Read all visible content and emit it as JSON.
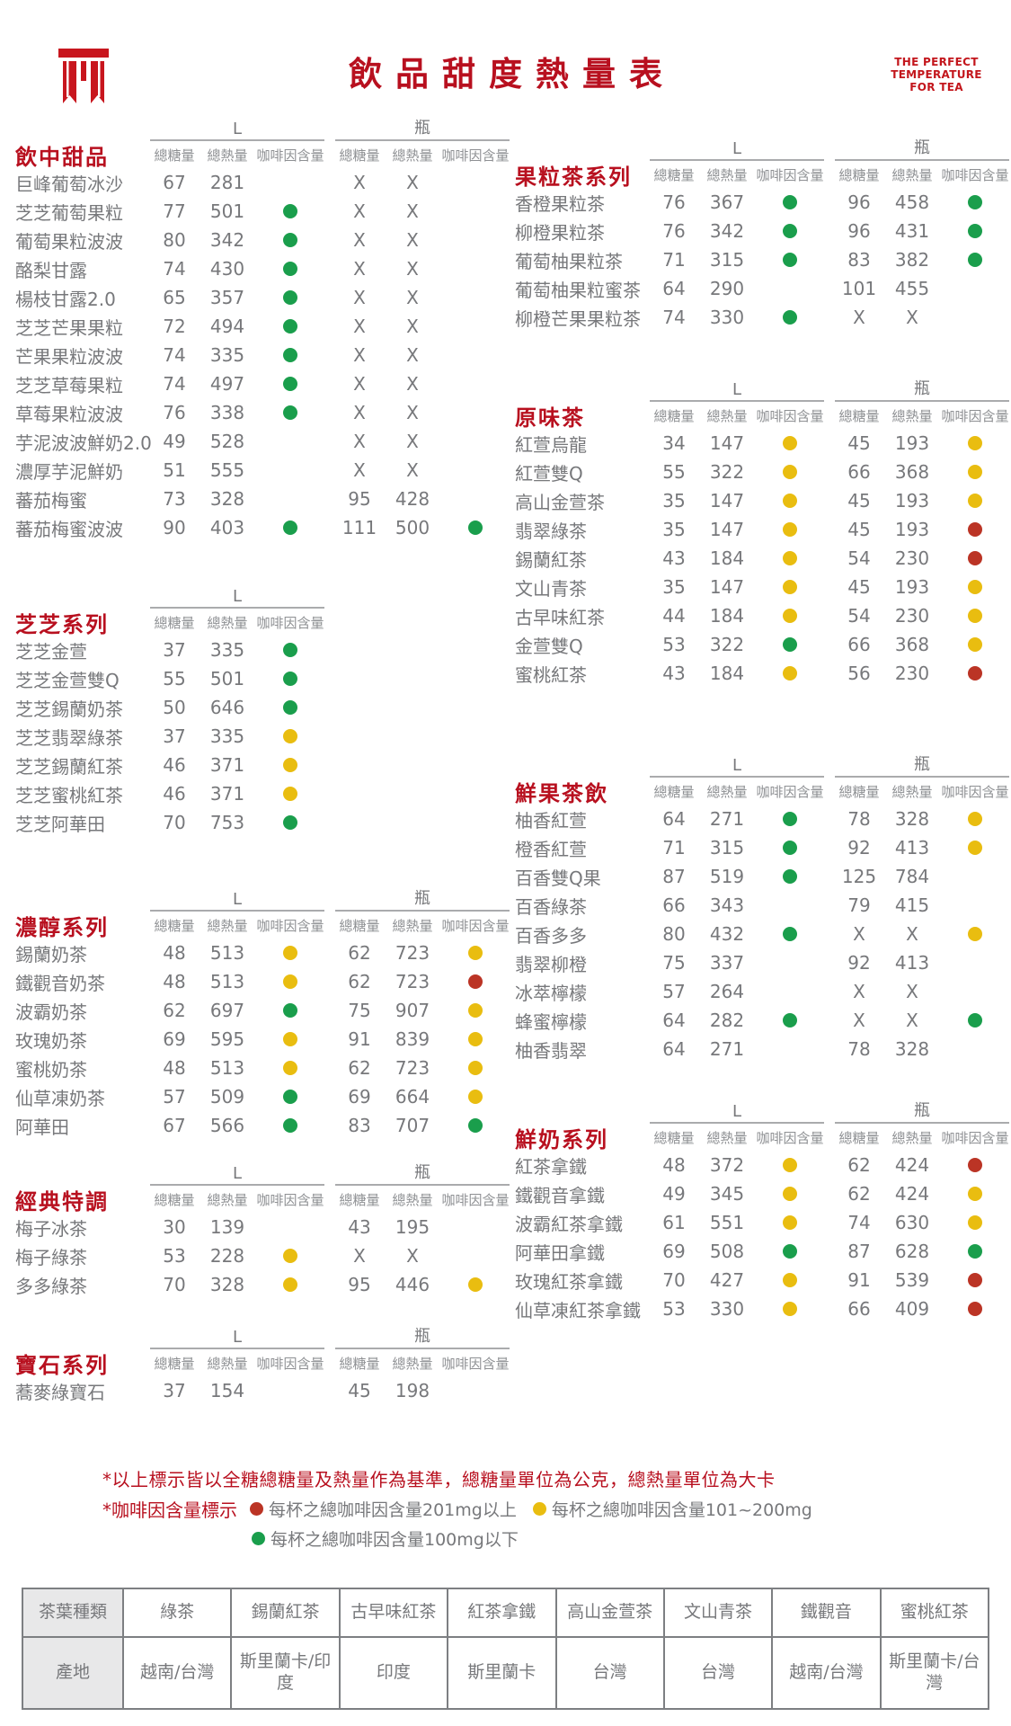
{
  "header": {
    "title": "飲品甜度熱量表",
    "tagline_lines": [
      "THE PERFECT",
      "TEMPERATURE",
      "FOR TEA"
    ]
  },
  "column_headers": {
    "size_l": "L",
    "size_bottle": "瓶",
    "sugar": "總糖量",
    "calories": "總熱量",
    "caffeine": "咖啡因含量"
  },
  "colors": {
    "accent_red": "#b8101f",
    "dot_green": "#1a9e4c",
    "dot_yellow": "#e9bd10",
    "dot_red": "#bb3425"
  },
  "sections": [
    {
      "id": "drink-desserts",
      "title": "飲中甜品",
      "sizes": [
        "L",
        "瓶"
      ],
      "rows": [
        [
          "巨峰葡萄冰沙",
          "67",
          "281",
          "",
          "X",
          "X",
          ""
        ],
        [
          "芝芝葡萄果粒",
          "77",
          "501",
          "green",
          "X",
          "X",
          ""
        ],
        [
          "葡萄果粒波波",
          "80",
          "342",
          "green",
          "X",
          "X",
          ""
        ],
        [
          "酪梨甘露",
          "74",
          "430",
          "green",
          "X",
          "X",
          ""
        ],
        [
          "楊枝甘露2.0",
          "65",
          "357",
          "green",
          "X",
          "X",
          ""
        ],
        [
          "芝芝芒果果粒",
          "72",
          "494",
          "green",
          "X",
          "X",
          ""
        ],
        [
          "芒果果粒波波",
          "74",
          "335",
          "green",
          "X",
          "X",
          ""
        ],
        [
          "芝芝草莓果粒",
          "74",
          "497",
          "green",
          "X",
          "X",
          ""
        ],
        [
          "草莓果粒波波",
          "76",
          "338",
          "green",
          "X",
          "X",
          ""
        ],
        [
          "芋泥波波鮮奶2.0",
          "49",
          "528",
          "",
          "X",
          "X",
          ""
        ],
        [
          "濃厚芋泥鮮奶",
          "51",
          "555",
          "",
          "X",
          "X",
          ""
        ],
        [
          "蕃茄梅蜜",
          "73",
          "328",
          "",
          "95",
          "428",
          ""
        ],
        [
          "蕃茄梅蜜波波",
          "90",
          "403",
          "green",
          "111",
          "500",
          "green"
        ]
      ]
    },
    {
      "id": "cheese-series",
      "title": "芝芝系列",
      "sizes": [
        "L"
      ],
      "rows": [
        [
          "芝芝金萱",
          "37",
          "335",
          "green",
          "",
          "",
          ""
        ],
        [
          "芝芝金萱雙Q",
          "55",
          "501",
          "green",
          "",
          "",
          ""
        ],
        [
          "芝芝錫蘭奶茶",
          "50",
          "646",
          "green",
          "",
          "",
          ""
        ],
        [
          "芝芝翡翠綠茶",
          "37",
          "335",
          "yellow",
          "",
          "",
          ""
        ],
        [
          "芝芝錫蘭紅茶",
          "46",
          "371",
          "yellow",
          "",
          "",
          ""
        ],
        [
          "芝芝蜜桃紅茶",
          "46",
          "371",
          "yellow",
          "",
          "",
          ""
        ],
        [
          "芝芝阿華田",
          "70",
          "753",
          "green",
          "",
          "",
          ""
        ]
      ]
    },
    {
      "id": "rich-series",
      "title": "濃醇系列",
      "sizes": [
        "L",
        "瓶"
      ],
      "rows": [
        [
          "錫蘭奶茶",
          "48",
          "513",
          "yellow",
          "62",
          "723",
          "yellow"
        ],
        [
          "鐵觀音奶茶",
          "48",
          "513",
          "yellow",
          "62",
          "723",
          "red"
        ],
        [
          "波霸奶茶",
          "62",
          "697",
          "green",
          "75",
          "907",
          "yellow"
        ],
        [
          "玫瑰奶茶",
          "69",
          "595",
          "yellow",
          "91",
          "839",
          "yellow"
        ],
        [
          "蜜桃奶茶",
          "48",
          "513",
          "yellow",
          "62",
          "723",
          "yellow"
        ],
        [
          "仙草凍奶茶",
          "57",
          "509",
          "green",
          "69",
          "664",
          "yellow"
        ],
        [
          "阿華田",
          "67",
          "566",
          "green",
          "83",
          "707",
          "green"
        ]
      ]
    },
    {
      "id": "classic-special",
      "title": "經典特調",
      "sizes": [
        "L",
        "瓶"
      ],
      "rows": [
        [
          "梅子冰茶",
          "30",
          "139",
          "",
          "43",
          "195",
          ""
        ],
        [
          "梅子綠茶",
          "53",
          "228",
          "yellow",
          "X",
          "X",
          ""
        ],
        [
          "多多綠茶",
          "70",
          "328",
          "yellow",
          "95",
          "446",
          "yellow"
        ]
      ]
    },
    {
      "id": "gem-series",
      "title": "寶石系列",
      "sizes": [
        "L",
        "瓶"
      ],
      "rows": [
        [
          "蕎麥綠寶石",
          "37",
          "154",
          "",
          "45",
          "198",
          ""
        ]
      ]
    },
    {
      "id": "fruit-tea-series",
      "title": "果粒茶系列",
      "sizes": [
        "L",
        "瓶"
      ],
      "rows": [
        [
          "香橙果粒茶",
          "76",
          "367",
          "green",
          "96",
          "458",
          "green"
        ],
        [
          "柳橙果粒茶",
          "76",
          "342",
          "green",
          "96",
          "431",
          "green"
        ],
        [
          "葡萄柚果粒茶",
          "71",
          "315",
          "green",
          "83",
          "382",
          "green"
        ],
        [
          "葡萄柚果粒蜜茶",
          "64",
          "290",
          "",
          "101",
          "455",
          ""
        ],
        [
          "柳橙芒果果粒茶",
          "74",
          "330",
          "green",
          "X",
          "X",
          ""
        ]
      ]
    },
    {
      "id": "original-tea",
      "title": "原味茶",
      "sizes": [
        "L",
        "瓶"
      ],
      "rows": [
        [
          "紅萱烏龍",
          "34",
          "147",
          "yellow",
          "45",
          "193",
          "yellow"
        ],
        [
          "紅萱雙Q",
          "55",
          "322",
          "yellow",
          "66",
          "368",
          "yellow"
        ],
        [
          "高山金萱茶",
          "35",
          "147",
          "yellow",
          "45",
          "193",
          "yellow"
        ],
        [
          "翡翠綠茶",
          "35",
          "147",
          "yellow",
          "45",
          "193",
          "red"
        ],
        [
          "錫蘭紅茶",
          "43",
          "184",
          "yellow",
          "54",
          "230",
          "red"
        ],
        [
          "文山青茶",
          "35",
          "147",
          "yellow",
          "45",
          "193",
          "yellow"
        ],
        [
          "古早味紅茶",
          "44",
          "184",
          "yellow",
          "54",
          "230",
          "yellow"
        ],
        [
          "金萱雙Q",
          "53",
          "322",
          "green",
          "66",
          "368",
          "yellow"
        ],
        [
          "蜜桃紅茶",
          "43",
          "184",
          "yellow",
          "56",
          "230",
          "red"
        ]
      ]
    },
    {
      "id": "fresh-fruit-tea",
      "title": "鮮果茶飲",
      "sizes": [
        "L",
        "瓶"
      ],
      "rows": [
        [
          "柚香紅萱",
          "64",
          "271",
          "green",
          "78",
          "328",
          "yellow"
        ],
        [
          "橙香紅萱",
          "71",
          "315",
          "green",
          "92",
          "413",
          "yellow"
        ],
        [
          "百香雙Q果",
          "87",
          "519",
          "green",
          "125",
          "784",
          ""
        ],
        [
          "百香綠茶",
          "66",
          "343",
          "",
          "79",
          "415",
          ""
        ],
        [
          "百香多多",
          "80",
          "432",
          "green",
          "X",
          "X",
          "yellow"
        ],
        [
          "翡翠柳橙",
          "75",
          "337",
          "",
          "92",
          "413",
          ""
        ],
        [
          "冰萃檸檬",
          "57",
          "264",
          "",
          "X",
          "X",
          ""
        ],
        [
          "蜂蜜檸檬",
          "64",
          "282",
          "green",
          "X",
          "X",
          "green"
        ],
        [
          "柚香翡翠",
          "64",
          "271",
          "",
          "78",
          "328",
          ""
        ]
      ]
    },
    {
      "id": "fresh-milk-series",
      "title": "鮮奶系列",
      "sizes": [
        "L",
        "瓶"
      ],
      "rows": [
        [
          "紅茶拿鐵",
          "48",
          "372",
          "yellow",
          "62",
          "424",
          "red"
        ],
        [
          "鐵觀音拿鐵",
          "49",
          "345",
          "yellow",
          "62",
          "424",
          "yellow"
        ],
        [
          "波霸紅茶拿鐵",
          "61",
          "551",
          "yellow",
          "74",
          "630",
          "yellow"
        ],
        [
          "阿華田拿鐵",
          "69",
          "508",
          "green",
          "87",
          "628",
          "green"
        ],
        [
          "玫瑰紅茶拿鐵",
          "70",
          "427",
          "yellow",
          "91",
          "539",
          "red"
        ],
        [
          "仙草凍紅茶拿鐵",
          "53",
          "330",
          "yellow",
          "66",
          "409",
          "red"
        ]
      ]
    }
  ],
  "notes": {
    "note1": "*以上標示皆以全糖總糖量及熱量作為基準，總糖量單位為公克，總熱量單位為大卡",
    "note2_label": "*咖啡因含量標示",
    "legend": [
      {
        "color": "red",
        "label": "每杯之總咖啡因含量201mg以上"
      },
      {
        "color": "yellow",
        "label": "每杯之總咖啡因含量101~200mg"
      },
      {
        "color": "green",
        "label": "每杯之總咖啡因含量100mg以下"
      }
    ]
  },
  "origin_table": {
    "type_row": [
      "茶葉種類",
      "綠茶",
      "錫蘭紅茶",
      "古早味紅茶",
      "紅茶拿鐵",
      "高山金萱茶",
      "文山青茶",
      "鐵觀音",
      "蜜桃紅茶"
    ],
    "origin_row": [
      "產地",
      "越南/台灣",
      "斯里蘭卡/印度",
      "印度",
      "斯里蘭卡",
      "台灣",
      "台灣",
      "越南/台灣",
      "斯里蘭卡/台灣"
    ]
  }
}
